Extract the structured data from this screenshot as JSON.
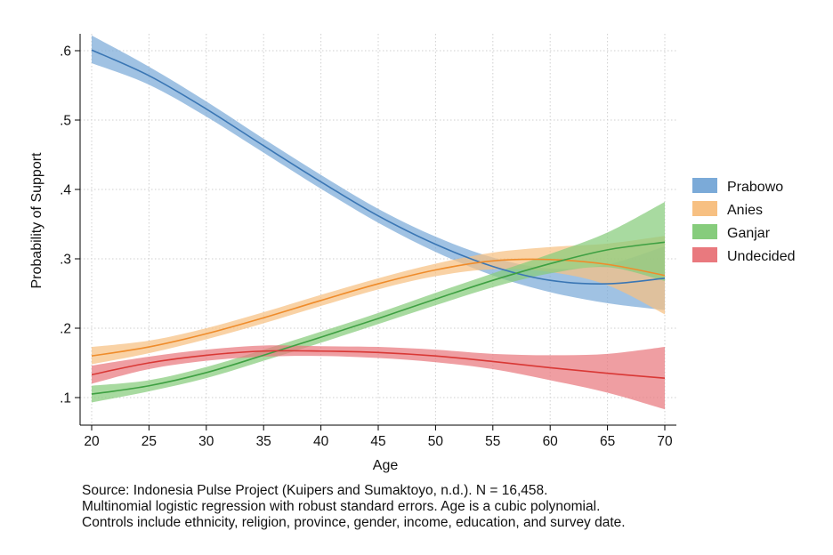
{
  "chart_data": {
    "type": "line",
    "xlabel": "Age",
    "ylabel": "Probability of Support",
    "xlim": [
      20,
      70
    ],
    "ylim": [
      0.085,
      0.625
    ],
    "x_ticks": [
      20,
      25,
      30,
      35,
      40,
      45,
      50,
      55,
      60,
      65,
      70
    ],
    "y_ticks": [
      0.1,
      0.2,
      0.3,
      0.4,
      0.5,
      0.6
    ],
    "y_tick_labels": [
      ".1",
      ".2",
      ".3",
      ".4",
      ".5",
      ".6"
    ],
    "grid": true,
    "legend_position": "right",
    "x": [
      20,
      25,
      30,
      35,
      40,
      45,
      50,
      55,
      60,
      65,
      70
    ],
    "series": [
      {
        "name": "Prabowo",
        "color": "#3a76b4",
        "band_color": "#7baad8",
        "values": [
          0.601,
          0.564,
          0.516,
          0.463,
          0.411,
          0.362,
          0.321,
          0.289,
          0.269,
          0.264,
          0.272
        ],
        "lower": [
          0.582,
          0.551,
          0.505,
          0.453,
          0.401,
          0.352,
          0.31,
          0.276,
          0.252,
          0.236,
          0.226
        ],
        "upper": [
          0.622,
          0.577,
          0.527,
          0.473,
          0.421,
          0.372,
          0.332,
          0.302,
          0.286,
          0.292,
          0.318
        ]
      },
      {
        "name": "Anies",
        "color": "#ef8c2b",
        "band_color": "#f7c082",
        "values": [
          0.16,
          0.173,
          0.192,
          0.215,
          0.24,
          0.264,
          0.284,
          0.297,
          0.299,
          0.292,
          0.276
        ],
        "lower": [
          0.148,
          0.164,
          0.184,
          0.207,
          0.232,
          0.256,
          0.275,
          0.285,
          0.281,
          0.262,
          0.22
        ],
        "upper": [
          0.173,
          0.182,
          0.2,
          0.223,
          0.248,
          0.272,
          0.293,
          0.309,
          0.317,
          0.322,
          0.333
        ]
      },
      {
        "name": "Ganjar",
        "color": "#3ea042",
        "band_color": "#86cc7c",
        "values": [
          0.105,
          0.117,
          0.136,
          0.161,
          0.187,
          0.214,
          0.242,
          0.269,
          0.293,
          0.313,
          0.324
        ],
        "lower": [
          0.093,
          0.109,
          0.128,
          0.153,
          0.179,
          0.206,
          0.233,
          0.259,
          0.279,
          0.288,
          0.268
        ],
        "upper": [
          0.117,
          0.125,
          0.144,
          0.169,
          0.195,
          0.222,
          0.251,
          0.279,
          0.307,
          0.338,
          0.382
        ]
      },
      {
        "name": "Undecided",
        "color": "#d93835",
        "band_color": "#e9797e",
        "values": [
          0.133,
          0.15,
          0.161,
          0.167,
          0.167,
          0.165,
          0.16,
          0.152,
          0.143,
          0.135,
          0.128
        ],
        "lower": [
          0.12,
          0.141,
          0.153,
          0.159,
          0.16,
          0.157,
          0.151,
          0.141,
          0.125,
          0.107,
          0.083
        ],
        "upper": [
          0.146,
          0.159,
          0.169,
          0.175,
          0.174,
          0.173,
          0.169,
          0.163,
          0.161,
          0.163,
          0.173
        ]
      }
    ]
  },
  "caption": {
    "line1": "Source: Indonesia Pulse Project (Kuipers and Sumaktoyo, n.d.). N = 16,458.",
    "line2": "Multinomial logistic regression with robust standard errors. Age is a cubic polynomial.",
    "line3": "Controls include ethnicity, religion, province, gender, income, education, and survey date."
  }
}
